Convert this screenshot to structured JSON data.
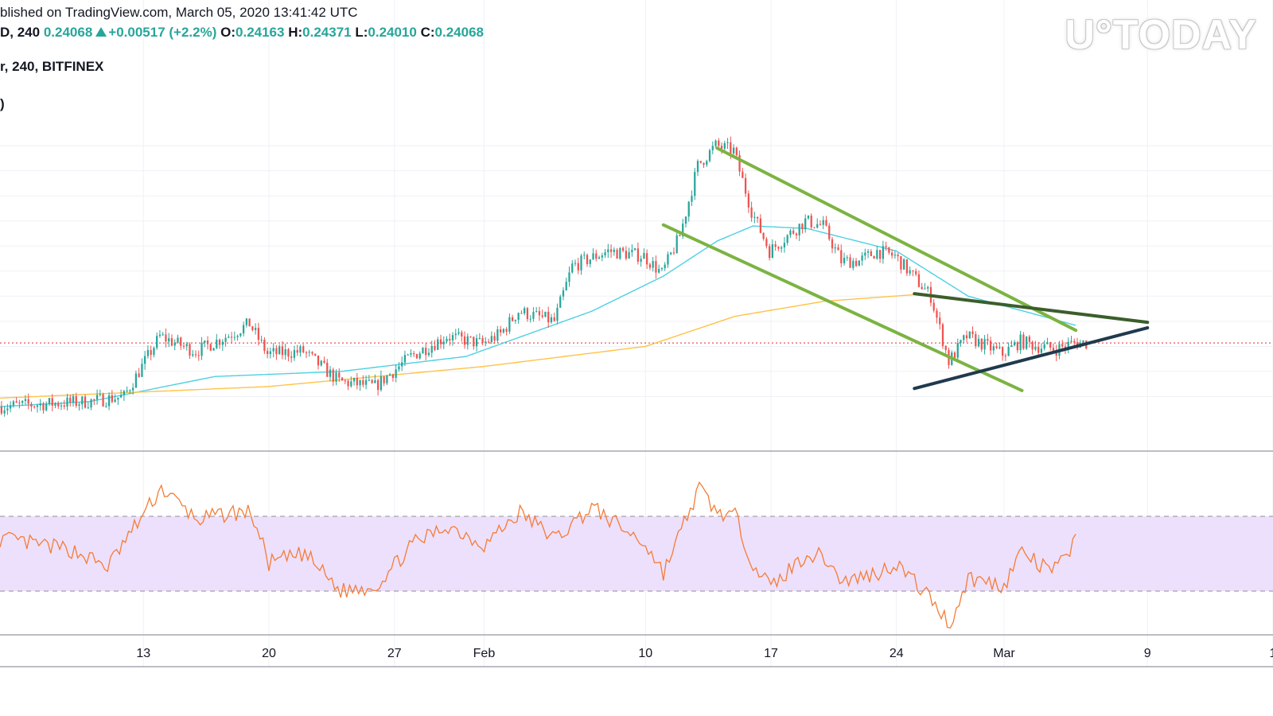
{
  "header": {
    "published": "blished on TradingView.com, March 05, 2020 13:41:42 UTC",
    "symbol_tf": "D, 240",
    "last": "0.24068",
    "change": "+0.00517 (+2.2%)",
    "o_label": "O:",
    "o": "0.24163",
    "h_label": "H:",
    "h": "0.24371",
    "l_label": "L:",
    "l": "0.24010",
    "c_label": "C:",
    "c": "0.24068",
    "source": "r, 240, BITFINEX",
    "indicator_stub": ")"
  },
  "watermark": "U°TODAY",
  "colors": {
    "up": "#26a69a",
    "down": "#ef5350",
    "ma_fast": "#4dd0e1",
    "ma_slow": "#ffc247",
    "channel": "#7cb342",
    "resistance": "#3b5e2b",
    "support": "#1f3a4d",
    "rsi": "#f57c36",
    "rsi_band": "#ede0fc",
    "price_line": "#ef5350",
    "grid": "#eef1f5"
  },
  "chart_data": [
    {
      "type": "candlestick",
      "x_axis": {
        "tick_labels": [
          "13",
          "20",
          "27",
          "Feb",
          "10",
          "17",
          "24",
          "Mar",
          "9",
          "1"
        ],
        "tick_dates": [
          "2020-01-13",
          "2020-01-20",
          "2020-01-27",
          "2020-02-01",
          "2020-02-10",
          "2020-02-17",
          "2020-02-24",
          "2020-03-01",
          "2020-03-09",
          "2020-03-16"
        ],
        "range": [
          "2020-01-05",
          "2020-03-16"
        ]
      },
      "y_axis": {
        "labels_visible": false,
        "range": [
          0.225,
          0.29
        ]
      },
      "grid": true,
      "current_price": 0.24068,
      "anchors": [
        [
          "2020-01-05",
          0.228
        ],
        [
          "2020-01-10",
          0.229
        ],
        [
          "2020-01-12",
          0.23
        ],
        [
          "2020-01-14",
          0.242
        ],
        [
          "2020-01-16",
          0.239
        ],
        [
          "2020-01-18",
          0.2425
        ],
        [
          "2020-01-19",
          0.2445
        ],
        [
          "2020-01-20",
          0.2385
        ],
        [
          "2020-01-22",
          0.239
        ],
        [
          "2020-01-24",
          0.233
        ],
        [
          "2020-01-26",
          0.232
        ],
        [
          "2020-01-28",
          0.238
        ],
        [
          "2020-01-30",
          0.242
        ],
        [
          "2020-02-01",
          0.2405
        ],
        [
          "2020-02-02",
          0.2425
        ],
        [
          "2020-02-03",
          0.247
        ],
        [
          "2020-02-05",
          0.245
        ],
        [
          "2020-02-06",
          0.256
        ],
        [
          "2020-02-08",
          0.259
        ],
        [
          "2020-02-10",
          0.258
        ],
        [
          "2020-02-11",
          0.2545
        ],
        [
          "2020-02-12",
          0.262
        ],
        [
          "2020-02-13",
          0.276
        ],
        [
          "2020-02-14",
          0.28
        ],
        [
          "2020-02-15",
          0.279
        ],
        [
          "2020-02-16",
          0.267
        ],
        [
          "2020-02-17",
          0.259
        ],
        [
          "2020-02-18",
          0.262
        ],
        [
          "2020-02-19",
          0.265
        ],
        [
          "2020-02-20",
          0.264
        ],
        [
          "2020-02-21",
          0.257
        ],
        [
          "2020-02-22",
          0.257
        ],
        [
          "2020-02-23",
          0.259
        ],
        [
          "2020-02-24",
          0.258
        ],
        [
          "2020-02-25",
          0.254
        ],
        [
          "2020-02-26",
          0.25
        ],
        [
          "2020-02-27",
          0.237
        ],
        [
          "2020-02-28",
          0.242
        ],
        [
          "2020-03-01",
          0.2385
        ],
        [
          "2020-03-02",
          0.241
        ],
        [
          "2020-03-03",
          0.24
        ],
        [
          "2020-03-04",
          0.2395
        ],
        [
          "2020-03-05",
          0.2407
        ]
      ],
      "moving_averages": [
        {
          "anchors": [
            [
              "2020-01-05",
              0.228
            ],
            [
              "2020-01-10",
              0.229
            ],
            [
              "2020-01-17",
              0.234
            ],
            [
              "2020-01-24",
              0.235
            ],
            [
              "2020-01-31",
              0.238
            ],
            [
              "2020-02-07",
              0.247
            ],
            [
              "2020-02-11",
              0.254
            ],
            [
              "2020-02-14",
              0.261
            ],
            [
              "2020-02-16",
              0.264
            ],
            [
              "2020-02-19",
              0.2635
            ],
            [
              "2020-02-24",
              0.259
            ],
            [
              "2020-02-28",
              0.25
            ],
            [
              "2020-03-05",
              0.2442
            ]
          ]
        },
        {
          "anchors": [
            [
              "2020-01-05",
              0.2297
            ],
            [
              "2020-01-20",
              0.232
            ],
            [
              "2020-02-01",
              0.236
            ],
            [
              "2020-02-10",
              0.24
            ],
            [
              "2020-02-15",
              0.246
            ],
            [
              "2020-02-20",
              0.249
            ],
            [
              "2020-02-25",
              0.2503
            ]
          ]
        }
      ],
      "drawings": [
        {
          "role": "channel-upper",
          "points": [
            [
              "2020-02-14",
              0.2795
            ],
            [
              "2020-03-05",
              0.2432
            ]
          ]
        },
        {
          "role": "channel-lower",
          "points": [
            [
              "2020-02-11",
              0.2642
            ],
            [
              "2020-03-02",
              0.2312
            ]
          ]
        },
        {
          "role": "resistance",
          "points": [
            [
              "2020-02-25",
              0.2505
            ],
            [
              "2020-03-09",
              0.2448
            ]
          ]
        },
        {
          "role": "support",
          "points": [
            [
              "2020-02-25",
              0.2316
            ],
            [
              "2020-03-09",
              0.2437
            ]
          ]
        }
      ]
    },
    {
      "type": "line",
      "indicator": "RSI",
      "y_axis": {
        "range": [
          10,
          90
        ],
        "band": [
          30,
          70
        ],
        "labels_visible": false
      },
      "anchors": [
        [
          "2020-01-05",
          58
        ],
        [
          "2020-01-09",
          52
        ],
        [
          "2020-01-11",
          43
        ],
        [
          "2020-01-14",
          85
        ],
        [
          "2020-01-16",
          68
        ],
        [
          "2020-01-18",
          72
        ],
        [
          "2020-01-19",
          72
        ],
        [
          "2020-01-20",
          45
        ],
        [
          "2020-01-22",
          50
        ],
        [
          "2020-01-24",
          30
        ],
        [
          "2020-01-26",
          33
        ],
        [
          "2020-01-28",
          55
        ],
        [
          "2020-01-30",
          65
        ],
        [
          "2020-02-01",
          55
        ],
        [
          "2020-02-03",
          72
        ],
        [
          "2020-02-05",
          58
        ],
        [
          "2020-02-07",
          75
        ],
        [
          "2020-02-10",
          55
        ],
        [
          "2020-02-11",
          40
        ],
        [
          "2020-02-13",
          85
        ],
        [
          "2020-02-14",
          72
        ],
        [
          "2020-02-15",
          70
        ],
        [
          "2020-02-16",
          45
        ],
        [
          "2020-02-17",
          32
        ],
        [
          "2020-02-19",
          50
        ],
        [
          "2020-02-20",
          48
        ],
        [
          "2020-02-21",
          35
        ],
        [
          "2020-02-23",
          40
        ],
        [
          "2020-02-24",
          45
        ],
        [
          "2020-02-25",
          35
        ],
        [
          "2020-02-26",
          25
        ],
        [
          "2020-02-27",
          12
        ],
        [
          "2020-02-28",
          37
        ],
        [
          "2020-03-01",
          33
        ],
        [
          "2020-03-02",
          52
        ],
        [
          "2020-03-03",
          43
        ],
        [
          "2020-03-04",
          42
        ],
        [
          "2020-03-05",
          58
        ]
      ]
    }
  ]
}
